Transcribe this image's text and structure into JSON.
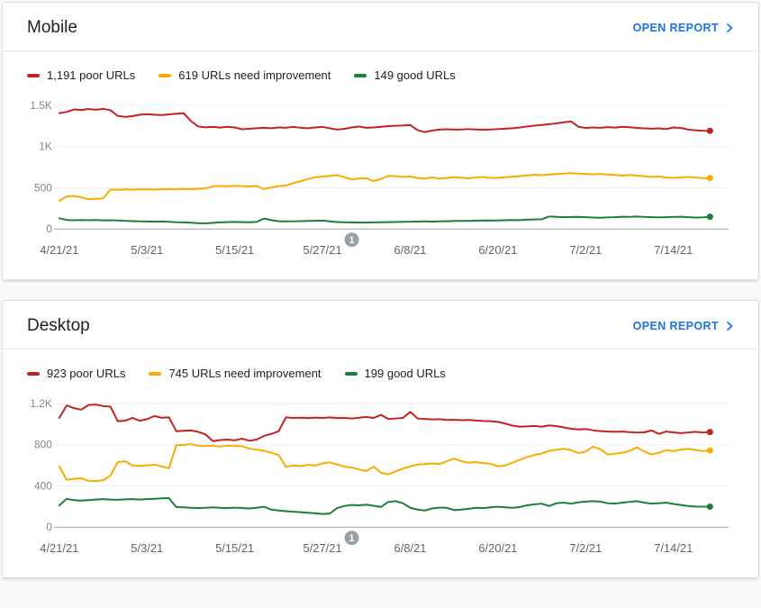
{
  "colors": {
    "accent_blue": "#1a73e8",
    "poor_red": "#c5221f",
    "improve_orange": "#f9ab00",
    "good_green": "#188038",
    "annotation_gray": "#9aa0a6"
  },
  "cards": [
    {
      "title": "Mobile",
      "open_report": "OPEN REPORT",
      "legend": [
        {
          "label": "1,191 poor URLs",
          "color": "#c5221f"
        },
        {
          "label": "619 URLs need improvement",
          "color": "#f9ab00"
        },
        {
          "label": "149 good URLs",
          "color": "#188038"
        }
      ]
    },
    {
      "title": "Desktop",
      "open_report": "OPEN REPORT",
      "legend": [
        {
          "label": "923 poor URLs",
          "color": "#c5221f"
        },
        {
          "label": "745 URLs need improvement",
          "color": "#f9ab00"
        },
        {
          "label": "199 good URLs",
          "color": "#188038"
        }
      ]
    }
  ],
  "chart_data": [
    {
      "type": "line",
      "title": "Mobile",
      "x_unit": "daily points from 4/21/21 to 7/19/21 (day index 0-89)",
      "x_tick_days": [
        0,
        12,
        24,
        36,
        48,
        60,
        72,
        84
      ],
      "x_tick_labels": [
        "4/21/21",
        "5/3/21",
        "5/15/21",
        "5/27/21",
        "6/8/21",
        "6/20/21",
        "7/2/21",
        "7/14/21"
      ],
      "y_ticks": [
        0,
        500,
        1000,
        1500
      ],
      "y_tick_labels": [
        "0",
        "500",
        "1K",
        "1.5K"
      ],
      "ylim": [
        0,
        1620
      ],
      "grid": "horizontal",
      "legend_position": "top",
      "annotation": {
        "label": "1",
        "day": 40
      },
      "series": [
        {
          "name": "poor URLs",
          "current": 1191,
          "color": "#c5221f",
          "values": [
            1405,
            1420,
            1450,
            1443,
            1455,
            1446,
            1458,
            1440,
            1372,
            1360,
            1370,
            1386,
            1394,
            1386,
            1381,
            1390,
            1399,
            1405,
            1310,
            1243,
            1233,
            1238,
            1230,
            1240,
            1232,
            1210,
            1215,
            1222,
            1228,
            1222,
            1232,
            1228,
            1238,
            1228,
            1222,
            1232,
            1238,
            1222,
            1205,
            1215,
            1232,
            1242,
            1228,
            1232,
            1240,
            1248,
            1252,
            1255,
            1261,
            1200,
            1175,
            1195,
            1205,
            1210,
            1205,
            1208,
            1212,
            1208,
            1204,
            1208,
            1212,
            1216,
            1222,
            1232,
            1244,
            1254,
            1262,
            1272,
            1282,
            1295,
            1304,
            1240,
            1226,
            1232,
            1227,
            1236,
            1230,
            1240,
            1235,
            1226,
            1221,
            1216,
            1221,
            1212,
            1232,
            1226,
            1206,
            1198,
            1192,
            1191
          ]
        },
        {
          "name": "URLs need improvement",
          "current": 619,
          "color": "#f9ab00",
          "values": [
            340,
            395,
            400,
            385,
            362,
            366,
            372,
            478,
            475,
            480,
            476,
            480,
            482,
            478,
            481,
            484,
            480,
            486,
            482,
            488,
            492,
            518,
            522,
            518,
            524,
            520,
            516,
            522,
            485,
            505,
            520,
            528,
            556,
            580,
            605,
            627,
            635,
            645,
            652,
            628,
            601,
            612,
            616,
            580,
            608,
            645,
            640,
            632,
            638,
            618,
            612,
            626,
            610,
            618,
            630,
            622,
            615,
            625,
            632,
            618,
            622,
            628,
            635,
            642,
            650,
            658,
            652,
            660,
            668,
            672,
            678,
            672,
            668,
            662,
            668,
            660,
            655,
            648,
            655,
            648,
            640,
            632,
            638,
            625,
            618,
            625,
            632,
            625,
            615,
            619
          ]
        },
        {
          "name": "good URLs",
          "current": 149,
          "color": "#188038",
          "values": [
            130,
            110,
            106,
            109,
            107,
            109,
            105,
            107,
            103,
            99,
            96,
            93,
            91,
            89,
            91,
            87,
            83,
            80,
            76,
            71,
            69,
            75,
            80,
            84,
            86,
            84,
            82,
            86,
            127,
            108,
            95,
            92,
            94,
            96,
            98,
            100,
            102,
            92,
            85,
            82,
            80,
            78,
            78,
            80,
            82,
            84,
            85,
            87,
            88,
            90,
            92,
            90,
            92,
            95,
            97,
            99,
            98,
            101,
            103,
            102,
            104,
            106,
            110,
            108,
            113,
            116,
            118,
            152,
            148,
            143,
            146,
            148,
            143,
            139,
            137,
            141,
            144,
            149,
            147,
            151,
            147,
            144,
            141,
            144,
            147,
            149,
            144,
            139,
            141,
            149
          ]
        }
      ]
    },
    {
      "type": "line",
      "title": "Desktop",
      "x_unit": "daily points from 4/21/21 to 7/19/21 (day index 0-89)",
      "x_tick_days": [
        0,
        12,
        24,
        36,
        48,
        60,
        72,
        84
      ],
      "x_tick_labels": [
        "4/21/21",
        "5/3/21",
        "5/15/21",
        "5/27/21",
        "6/8/21",
        "6/20/21",
        "7/2/21",
        "7/14/21"
      ],
      "y_ticks": [
        0,
        400,
        800,
        1200
      ],
      "y_tick_labels": [
        "0",
        "400",
        "800",
        "1.2K"
      ],
      "ylim": [
        0,
        1290
      ],
      "grid": "horizontal",
      "legend_position": "top",
      "annotation": {
        "label": "1",
        "day": 40
      },
      "series": [
        {
          "name": "poor URLs",
          "current": 923,
          "color": "#c5221f",
          "values": [
            1060,
            1180,
            1155,
            1140,
            1185,
            1190,
            1175,
            1170,
            1028,
            1032,
            1060,
            1032,
            1048,
            1078,
            1062,
            1065,
            930,
            935,
            938,
            925,
            900,
            835,
            845,
            850,
            843,
            858,
            838,
            850,
            885,
            905,
            930,
            1065,
            1060,
            1062,
            1058,
            1063,
            1060,
            1065,
            1058,
            1060,
            1055,
            1062,
            1070,
            1060,
            1090,
            1050,
            1055,
            1060,
            1118,
            1055,
            1050,
            1045,
            1048,
            1040,
            1042,
            1038,
            1040,
            1035,
            1030,
            1028,
            1022,
            1005,
            985,
            975,
            978,
            982,
            975,
            988,
            980,
            968,
            955,
            948,
            952,
            940,
            932,
            928,
            925,
            928,
            922,
            918,
            920,
            938,
            905,
            928,
            920,
            912,
            918,
            925,
            918,
            923
          ]
        },
        {
          "name": "URLs need improvement",
          "current": 745,
          "color": "#f9ab00",
          "values": [
            590,
            460,
            468,
            475,
            450,
            448,
            455,
            500,
            630,
            640,
            598,
            595,
            600,
            605,
            590,
            572,
            795,
            798,
            805,
            790,
            788,
            790,
            782,
            790,
            788,
            785,
            762,
            752,
            742,
            722,
            700,
            585,
            598,
            592,
            605,
            598,
            618,
            628,
            608,
            588,
            578,
            560,
            545,
            588,
            528,
            512,
            542,
            568,
            590,
            608,
            612,
            618,
            612,
            640,
            665,
            640,
            625,
            630,
            622,
            615,
            590,
            598,
            625,
            655,
            680,
            700,
            715,
            740,
            752,
            760,
            748,
            718,
            735,
            780,
            758,
            705,
            712,
            722,
            740,
            775,
            735,
            705,
            722,
            748,
            738,
            752,
            760,
            748,
            738,
            745
          ]
        },
        {
          "name": "good URLs",
          "current": 199,
          "color": "#188038",
          "values": [
            210,
            275,
            262,
            258,
            262,
            268,
            272,
            268,
            265,
            270,
            272,
            268,
            272,
            275,
            280,
            282,
            195,
            192,
            188,
            185,
            188,
            192,
            188,
            185,
            190,
            186,
            182,
            188,
            198,
            170,
            162,
            155,
            150,
            145,
            140,
            135,
            128,
            132,
            185,
            205,
            215,
            212,
            218,
            208,
            196,
            245,
            252,
            232,
            188,
            170,
            162,
            182,
            190,
            188,
            165,
            170,
            178,
            188,
            184,
            192,
            198,
            192,
            188,
            195,
            212,
            222,
            228,
            205,
            232,
            238,
            228,
            242,
            248,
            252,
            248,
            232,
            228,
            238,
            245,
            252,
            238,
            228,
            232,
            238,
            225,
            215,
            205,
            200,
            198,
            199
          ]
        }
      ]
    }
  ]
}
